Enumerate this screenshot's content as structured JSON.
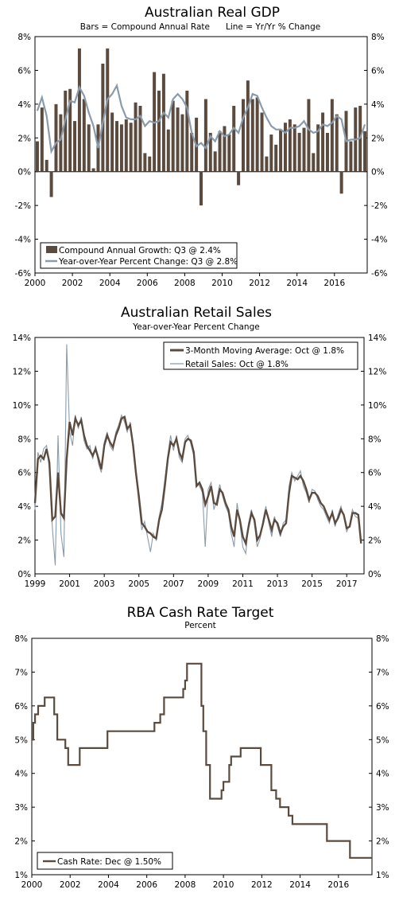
{
  "chart_data": [
    {
      "type": "bar",
      "title": "Australian Real GDP",
      "subtitle": "Bars = Compound Annual Rate      Line = Yr/Yr % Change",
      "xlim": [
        2000.0,
        2017.75
      ],
      "ylim": [
        -6,
        8
      ],
      "y_ticks": [
        "8%",
        "6%",
        "4%",
        "2%",
        "0%",
        "-2%",
        "-4%",
        "-6%"
      ],
      "y_tick_values": [
        8,
        6,
        4,
        2,
        0,
        -2,
        -4,
        -6
      ],
      "x_ticks": [
        "2000",
        "2002",
        "2004",
        "2006",
        "2008",
        "2010",
        "2012",
        "2014",
        "2016"
      ],
      "x_tick_values": [
        2000,
        2002,
        2004,
        2006,
        2008,
        2010,
        2012,
        2014,
        2016
      ],
      "legend_position": "bottom-left",
      "colors": {
        "bar": "#5b4b3e",
        "line": "#8a9bab"
      },
      "series": [
        {
          "name": "Compound Annual Growth: Q3 @ 2.4%",
          "kind": "bar",
          "x": [
            2000.0,
            2000.25,
            2000.5,
            2000.75,
            2001.0,
            2001.25,
            2001.5,
            2001.75,
            2002.0,
            2002.25,
            2002.5,
            2002.75,
            2003.0,
            2003.25,
            2003.5,
            2003.75,
            2004.0,
            2004.25,
            2004.5,
            2004.75,
            2005.0,
            2005.25,
            2005.5,
            2005.75,
            2006.0,
            2006.25,
            2006.5,
            2006.75,
            2007.0,
            2007.25,
            2007.5,
            2007.75,
            2008.0,
            2008.25,
            2008.5,
            2008.75,
            2009.0,
            2009.25,
            2009.5,
            2009.75,
            2010.0,
            2010.25,
            2010.5,
            2010.75,
            2011.0,
            2011.25,
            2011.5,
            2011.75,
            2012.0,
            2012.25,
            2012.5,
            2012.75,
            2013.0,
            2013.25,
            2013.5,
            2013.75,
            2014.0,
            2014.25,
            2014.5,
            2014.75,
            2015.0,
            2015.25,
            2015.5,
            2015.75,
            2016.0,
            2016.25,
            2016.5,
            2016.75,
            2017.0,
            2017.25,
            2017.5
          ],
          "values": [
            1.8,
            3.8,
            0.7,
            -1.5,
            4.0,
            3.4,
            4.8,
            4.9,
            3.0,
            7.3,
            4.3,
            2.8,
            0.2,
            2.8,
            6.4,
            7.3,
            3.5,
            3.0,
            2.8,
            3.1,
            2.9,
            4.1,
            3.9,
            1.1,
            0.9,
            5.9,
            4.8,
            5.8,
            2.5,
            4.2,
            3.8,
            3.4,
            4.8,
            2.3,
            3.2,
            -2.0,
            4.3,
            2.3,
            1.2,
            2.4,
            2.7,
            2.2,
            3.9,
            -0.8,
            4.3,
            5.4,
            4.3,
            4.4,
            3.5,
            0.9,
            2.2,
            1.6,
            2.5,
            2.9,
            3.1,
            2.8,
            2.3,
            2.6,
            4.3,
            1.1,
            2.8,
            3.5,
            2.3,
            4.3,
            3.4,
            -1.3,
            3.6,
            1.8,
            3.8,
            3.9,
            2.4
          ]
        },
        {
          "name": "Year-over-Year Percent Change: Q3 @ 2.8%",
          "kind": "line",
          "x": [
            2000.0,
            2000.25,
            2000.5,
            2000.75,
            2001.0,
            2001.25,
            2001.5,
            2001.75,
            2002.0,
            2002.25,
            2002.5,
            2002.75,
            2003.0,
            2003.25,
            2003.5,
            2003.75,
            2004.0,
            2004.25,
            2004.5,
            2004.75,
            2005.0,
            2005.25,
            2005.5,
            2005.75,
            2006.0,
            2006.25,
            2006.5,
            2006.75,
            2007.0,
            2007.25,
            2007.5,
            2007.75,
            2008.0,
            2008.25,
            2008.5,
            2008.75,
            2009.0,
            2009.25,
            2009.5,
            2009.75,
            2010.0,
            2010.25,
            2010.5,
            2010.75,
            2011.0,
            2011.25,
            2011.5,
            2011.75,
            2012.0,
            2012.25,
            2012.5,
            2012.75,
            2013.0,
            2013.25,
            2013.5,
            2013.75,
            2014.0,
            2014.25,
            2014.5,
            2014.75,
            2015.0,
            2015.25,
            2015.5,
            2015.75,
            2016.0,
            2016.25,
            2016.5,
            2016.75,
            2017.0,
            2017.25,
            2017.5
          ],
          "values": [
            3.6,
            4.4,
            3.3,
            1.2,
            1.7,
            1.9,
            3.1,
            4.2,
            4.1,
            5.0,
            4.5,
            3.5,
            2.7,
            1.4,
            2.9,
            4.3,
            4.6,
            5.1,
            3.9,
            3.2,
            3.1,
            3.1,
            3.3,
            2.7,
            3.0,
            2.9,
            3.0,
            3.5,
            3.2,
            4.3,
            4.6,
            4.3,
            3.8,
            2.3,
            1.5,
            1.7,
            1.4,
            2.1,
            1.8,
            2.4,
            2.1,
            2.2,
            2.6,
            2.3,
            3.2,
            3.8,
            4.6,
            4.5,
            3.8,
            3.2,
            2.7,
            2.5,
            2.5,
            2.3,
            2.6,
            2.6,
            2.7,
            3.0,
            2.5,
            2.3,
            2.4,
            2.8,
            2.7,
            2.9,
            3.3,
            3.1,
            1.8,
            1.9,
            1.9,
            2.0,
            2.8
          ]
        }
      ]
    },
    {
      "type": "line",
      "title": "Australian Retail Sales",
      "subtitle": "Year-over-Year Percent Change",
      "xlim": [
        1999.0,
        2018.0
      ],
      "ylim": [
        0,
        14
      ],
      "y_ticks": [
        "14%",
        "12%",
        "10%",
        "8%",
        "6%",
        "4%",
        "2%",
        "0%"
      ],
      "y_tick_values": [
        14,
        12,
        10,
        8,
        6,
        4,
        2,
        0
      ],
      "x_ticks": [
        "1999",
        "2001",
        "2003",
        "2005",
        "2007",
        "2009",
        "2011",
        "2013",
        "2015",
        "2017"
      ],
      "x_tick_values": [
        1999,
        2001,
        2003,
        2005,
        2007,
        2009,
        2011,
        2013,
        2015,
        2017
      ],
      "legend_position": "top-right",
      "colors": {
        "ma": "#5b4b3e",
        "raw": "#8a9bab"
      },
      "series": [
        {
          "name": "3-Month Moving Average: Oct @ 1.8%",
          "kind": "line",
          "x": [
            1999.0,
            1999.17,
            1999.33,
            1999.5,
            1999.67,
            1999.83,
            2000.0,
            2000.17,
            2000.33,
            2000.5,
            2000.67,
            2000.83,
            2001.0,
            2001.17,
            2001.33,
            2001.5,
            2001.67,
            2001.83,
            2002.0,
            2002.17,
            2002.33,
            2002.5,
            2002.67,
            2002.83,
            2003.0,
            2003.17,
            2003.33,
            2003.5,
            2003.67,
            2003.83,
            2004.0,
            2004.17,
            2004.33,
            2004.5,
            2004.67,
            2004.83,
            2005.0,
            2005.17,
            2005.33,
            2005.5,
            2005.67,
            2005.83,
            2006.0,
            2006.17,
            2006.33,
            2006.5,
            2006.67,
            2006.83,
            2007.0,
            2007.17,
            2007.33,
            2007.5,
            2007.67,
            2007.83,
            2008.0,
            2008.17,
            2008.33,
            2008.5,
            2008.67,
            2008.83,
            2009.0,
            2009.17,
            2009.33,
            2009.5,
            2009.67,
            2009.83,
            2010.0,
            2010.17,
            2010.33,
            2010.5,
            2010.67,
            2010.83,
            2011.0,
            2011.17,
            2011.33,
            2011.5,
            2011.67,
            2011.83,
            2012.0,
            2012.17,
            2012.33,
            2012.5,
            2012.67,
            2012.83,
            2013.0,
            2013.17,
            2013.33,
            2013.5,
            2013.67,
            2013.83,
            2014.0,
            2014.17,
            2014.33,
            2014.5,
            2014.67,
            2014.83,
            2015.0,
            2015.17,
            2015.33,
            2015.5,
            2015.67,
            2015.83,
            2016.0,
            2016.17,
            2016.33,
            2016.5,
            2016.67,
            2016.83,
            2017.0,
            2017.17,
            2017.33,
            2017.5,
            2017.67,
            2017.83
          ],
          "values": [
            4.2,
            6.8,
            7.0,
            6.8,
            7.4,
            6.6,
            3.2,
            3.4,
            6.0,
            3.6,
            3.3,
            6.8,
            9.0,
            8.2,
            9.2,
            8.8,
            9.1,
            8.2,
            7.6,
            7.3,
            7.0,
            7.4,
            6.8,
            6.2,
            7.6,
            8.2,
            7.8,
            7.5,
            8.2,
            8.6,
            9.2,
            9.3,
            8.6,
            8.8,
            7.6,
            6.0,
            4.6,
            3.0,
            2.8,
            2.5,
            2.4,
            2.2,
            2.1,
            3.2,
            3.8,
            5.2,
            6.8,
            7.8,
            7.6,
            8.0,
            7.2,
            6.8,
            7.8,
            8.0,
            7.9,
            7.2,
            5.2,
            5.4,
            5.0,
            4.1,
            4.6,
            5.2,
            4.2,
            4.1,
            5.0,
            4.8,
            4.2,
            3.8,
            2.8,
            2.2,
            3.8,
            3.2,
            2.2,
            1.8,
            2.8,
            3.6,
            3.2,
            2.0,
            2.3,
            3.0,
            3.8,
            3.2,
            2.6,
            3.2,
            3.0,
            2.4,
            2.8,
            3.0,
            4.8,
            5.8,
            5.7,
            5.6,
            5.8,
            5.5,
            5.0,
            4.4,
            4.8,
            4.8,
            4.6,
            4.2,
            4.0,
            3.6,
            3.2,
            3.6,
            3.0,
            3.3,
            3.8,
            3.5,
            2.7,
            2.8,
            3.6,
            3.6,
            3.5,
            1.8
          ]
        },
        {
          "name": "Retail Sales: Oct @ 1.8%",
          "kind": "line",
          "x": [
            1999.0,
            1999.17,
            1999.33,
            1999.5,
            1999.67,
            1999.83,
            2000.0,
            2000.17,
            2000.33,
            2000.5,
            2000.67,
            2000.83,
            2001.0,
            2001.17,
            2001.33,
            2001.5,
            2001.67,
            2001.83,
            2002.0,
            2002.17,
            2002.33,
            2002.5,
            2002.67,
            2002.83,
            2003.0,
            2003.17,
            2003.33,
            2003.5,
            2003.67,
            2003.83,
            2004.0,
            2004.17,
            2004.33,
            2004.5,
            2004.67,
            2004.83,
            2005.0,
            2005.17,
            2005.33,
            2005.5,
            2005.67,
            2005.83,
            2006.0,
            2006.17,
            2006.33,
            2006.5,
            2006.67,
            2006.83,
            2007.0,
            2007.17,
            2007.33,
            2007.5,
            2007.67,
            2007.83,
            2008.0,
            2008.17,
            2008.33,
            2008.5,
            2008.67,
            2008.83,
            2009.0,
            2009.17,
            2009.33,
            2009.5,
            2009.67,
            2009.83,
            2010.0,
            2010.17,
            2010.33,
            2010.5,
            2010.67,
            2010.83,
            2011.0,
            2011.17,
            2011.33,
            2011.5,
            2011.67,
            2011.83,
            2012.0,
            2012.17,
            2012.33,
            2012.5,
            2012.67,
            2012.83,
            2013.0,
            2013.17,
            2013.33,
            2013.5,
            2013.67,
            2013.83,
            2014.0,
            2014.17,
            2014.33,
            2014.5,
            2014.67,
            2014.83,
            2015.0,
            2015.17,
            2015.33,
            2015.5,
            2015.67,
            2015.83,
            2016.0,
            2016.17,
            2016.33,
            2016.5,
            2016.67,
            2016.83,
            2017.0,
            2017.17,
            2017.33,
            2017.5,
            2017.67,
            2017.83
          ],
          "values": [
            3.8,
            7.2,
            6.6,
            7.4,
            7.6,
            6.2,
            2.8,
            0.5,
            8.2,
            2.4,
            1.0,
            13.6,
            8.4,
            7.6,
            9.4,
            8.6,
            9.3,
            7.9,
            7.4,
            7.6,
            6.8,
            7.6,
            6.5,
            6.0,
            7.8,
            8.4,
            7.6,
            7.3,
            8.4,
            8.8,
            9.4,
            9.0,
            8.4,
            9.0,
            7.3,
            5.8,
            4.2,
            2.6,
            3.1,
            2.2,
            1.3,
            2.4,
            2.0,
            3.4,
            4.2,
            5.6,
            7.0,
            8.2,
            7.3,
            8.2,
            6.9,
            6.6,
            8.0,
            8.2,
            7.7,
            7.0,
            5.4,
            5.2,
            4.8,
            1.6,
            5.0,
            5.4,
            3.8,
            4.4,
            5.3,
            4.6,
            4.0,
            3.6,
            2.4,
            1.6,
            4.2,
            3.0,
            1.6,
            1.2,
            3.0,
            3.8,
            3.0,
            1.6,
            2.1,
            3.2,
            4.0,
            3.0,
            2.2,
            3.4,
            2.8,
            2.2,
            3.0,
            3.2,
            5.2,
            6.0,
            5.5,
            5.8,
            6.1,
            5.2,
            4.8,
            4.2,
            5.0,
            4.9,
            4.4,
            4.0,
            3.8,
            3.4,
            3.0,
            3.8,
            2.8,
            3.5,
            4.0,
            3.4,
            2.5,
            2.9,
            3.8,
            3.4,
            3.3,
            1.8
          ]
        }
      ]
    },
    {
      "type": "line",
      "title": "RBA Cash Rate Target",
      "subtitle": "Percent",
      "xlim": [
        2000.0,
        2017.75
      ],
      "ylim": [
        1,
        8
      ],
      "y_ticks": [
        "8%",
        "7%",
        "6%",
        "5%",
        "4%",
        "3%",
        "2%",
        "1%"
      ],
      "y_tick_values": [
        8,
        7,
        6,
        5,
        4,
        3,
        2,
        1
      ],
      "x_ticks": [
        "2000",
        "2002",
        "2004",
        "2006",
        "2008",
        "2010",
        "2012",
        "2014",
        "2016"
      ],
      "x_tick_values": [
        2000,
        2002,
        2004,
        2006,
        2008,
        2010,
        2012,
        2014,
        2016
      ],
      "legend_position": "bottom-left",
      "colors": {
        "line": "#5b4b3e"
      },
      "series": [
        {
          "name": "Cash Rate: Dec @ 1.50%",
          "kind": "step",
          "x": [
            2000.0,
            2000.08,
            2000.17,
            2000.33,
            2000.42,
            2000.67,
            2001.0,
            2001.17,
            2001.33,
            2001.75,
            2001.9,
            2002.4,
            2002.5,
            2003.9,
            2003.95,
            2005.2,
            2006.4,
            2006.7,
            2006.9,
            2007.65,
            2007.9,
            2008.0,
            2008.1,
            2008.75,
            2008.85,
            2008.95,
            2009.1,
            2009.3,
            2009.8,
            2009.9,
            2010.0,
            2010.3,
            2010.4,
            2010.9,
            2011.9,
            2011.95,
            2012.4,
            2012.5,
            2012.75,
            2012.95,
            2013.4,
            2013.6,
            2015.1,
            2015.4,
            2016.4,
            2016.6,
            2017.75
          ],
          "values": [
            5.0,
            5.5,
            5.75,
            6.0,
            6.0,
            6.25,
            6.25,
            5.75,
            5.0,
            4.75,
            4.25,
            4.25,
            4.75,
            4.75,
            5.25,
            5.25,
            5.5,
            5.75,
            6.25,
            6.25,
            6.5,
            6.75,
            7.25,
            7.25,
            6.0,
            5.25,
            4.25,
            3.25,
            3.25,
            3.5,
            3.75,
            4.25,
            4.5,
            4.75,
            4.75,
            4.25,
            4.25,
            3.5,
            3.25,
            3.0,
            2.75,
            2.5,
            2.5,
            2.0,
            2.0,
            1.5,
            1.5
          ]
        }
      ]
    }
  ]
}
